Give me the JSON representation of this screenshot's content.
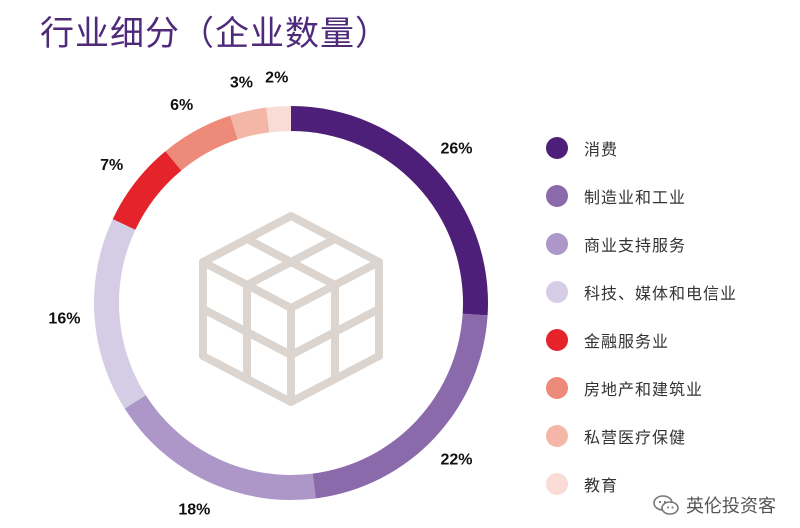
{
  "title": "行业细分（企业数量）",
  "colors": [
    "#4e1f78",
    "#8a6aaa",
    "#ad97c9",
    "#d5cde5",
    "#e5232b",
    "#ee8a7a",
    "#f4b6a6",
    "#f9dcd6"
  ],
  "chart_data": {
    "type": "pie",
    "donut": true,
    "title": "",
    "legend_position": "right",
    "categories": [
      "消费",
      "制造业和工业",
      "商业支持服务",
      "科技、媒体和电信业",
      "金融服务业",
      "房地产和建筑业",
      "私营医疗保健",
      "教育"
    ],
    "values": [
      26,
      22,
      18,
      16,
      7,
      6,
      3,
      2
    ],
    "labels": [
      "26%",
      "22%",
      "18%",
      "16%",
      "7%",
      "6%",
      "3%",
      "2%"
    ]
  },
  "watermark": {
    "text": "英伦投资客",
    "icon": "wechat-icon"
  }
}
